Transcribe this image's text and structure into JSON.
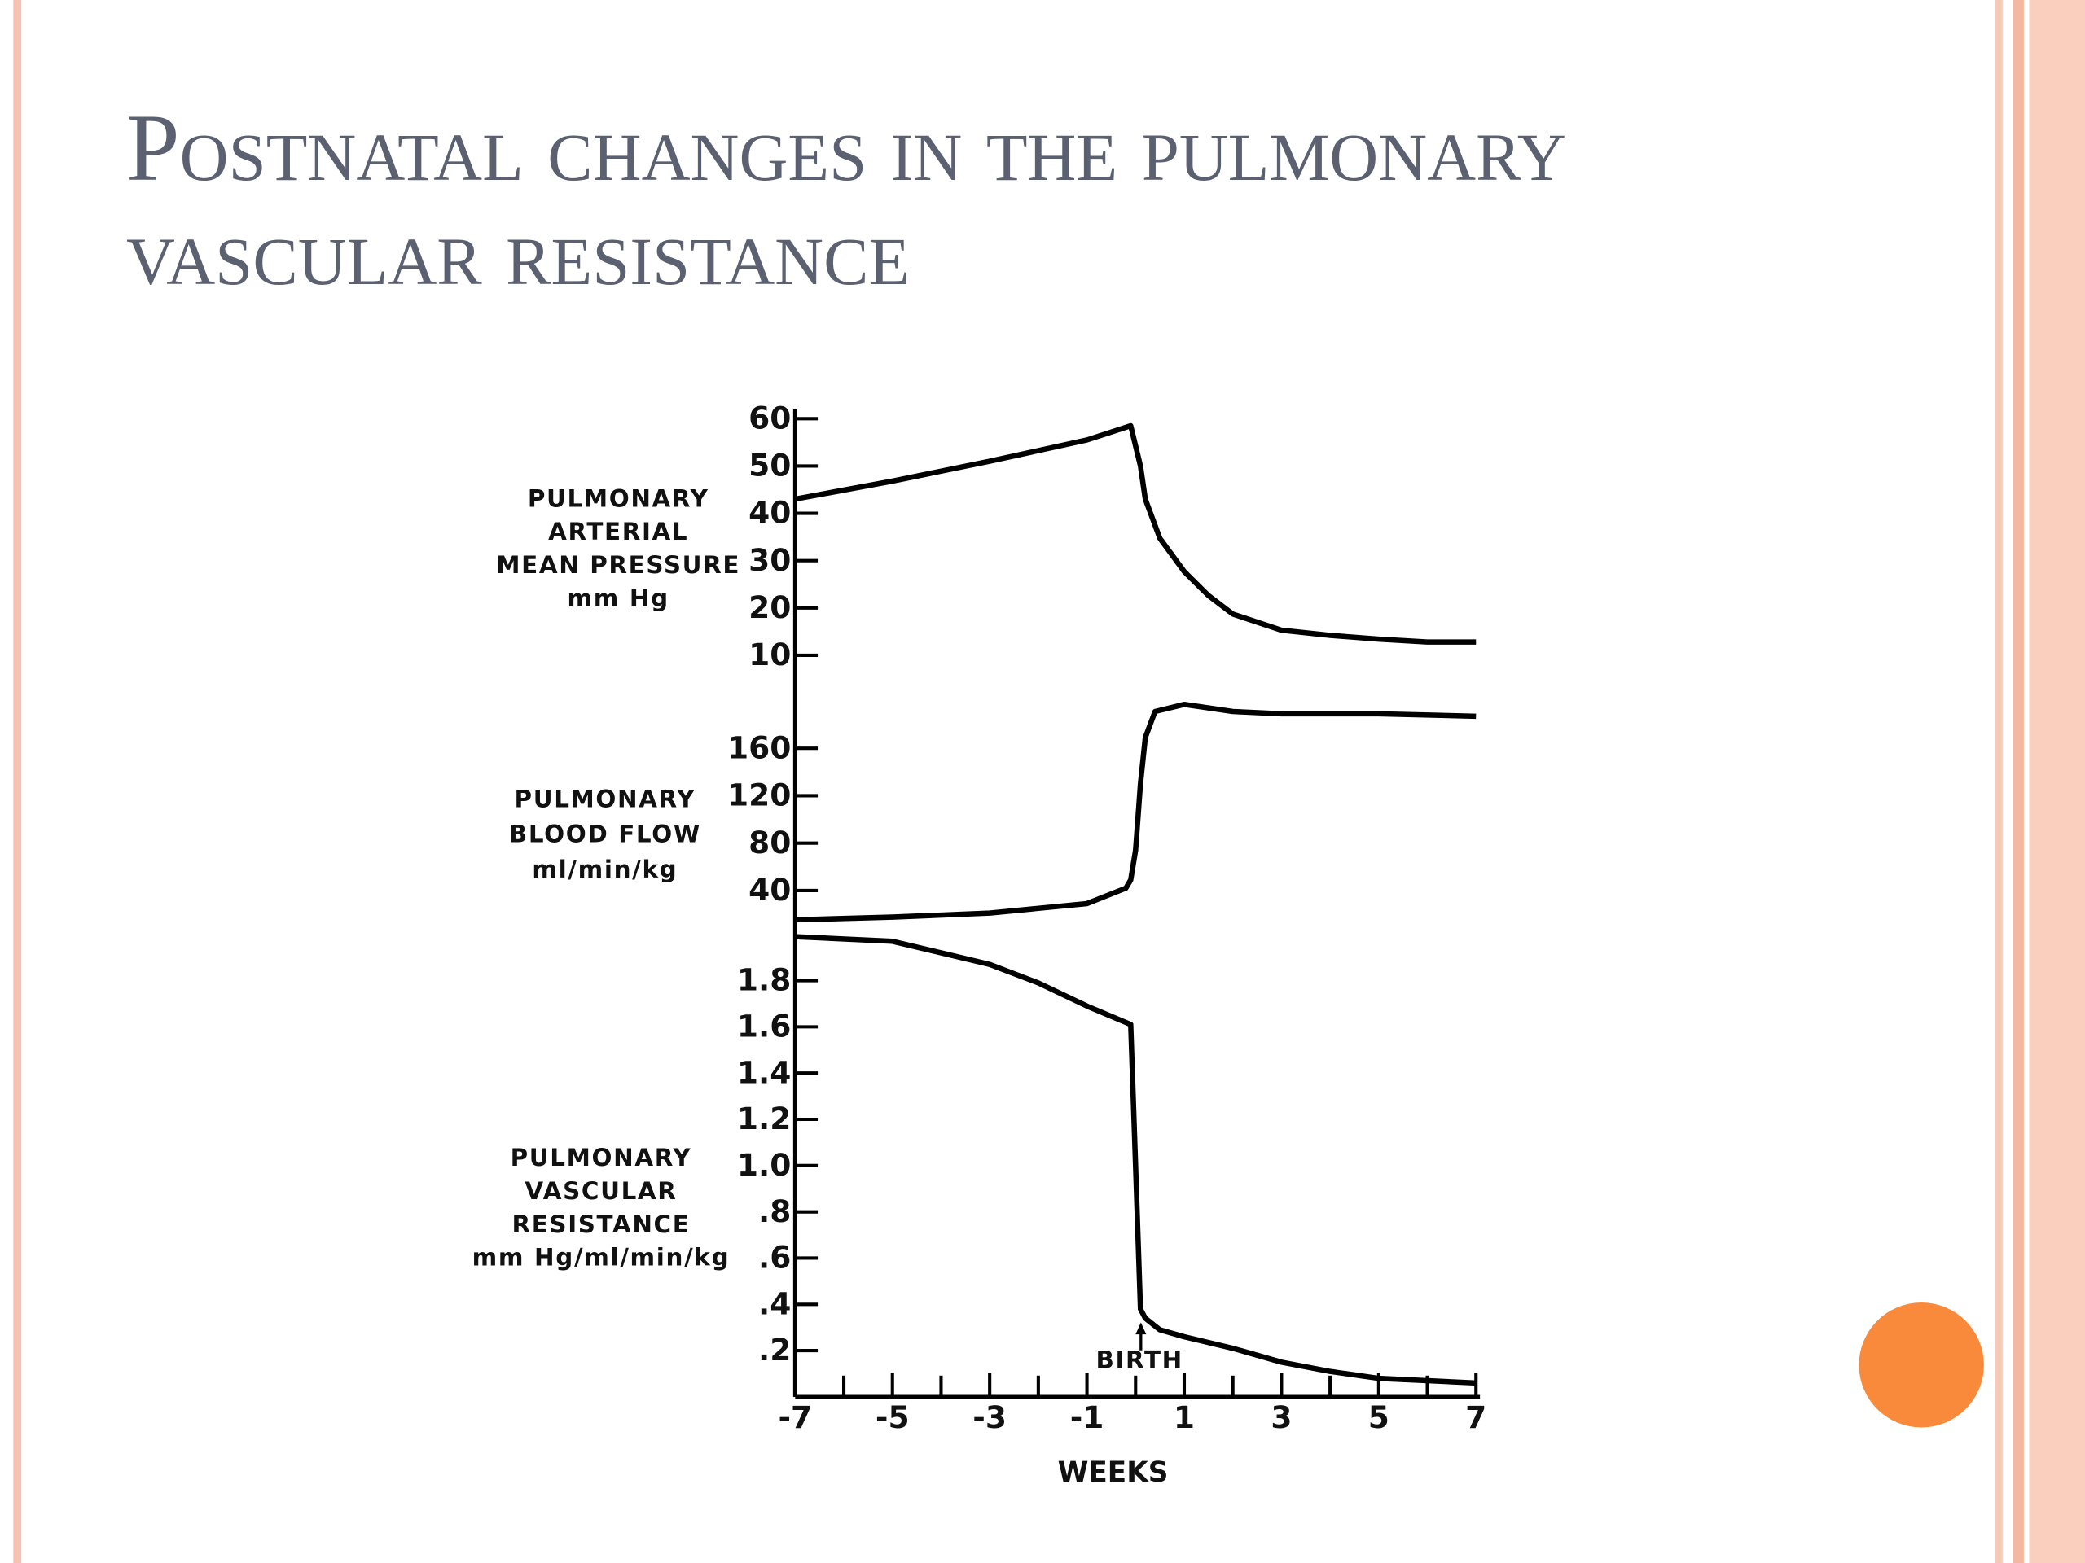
{
  "slide": {
    "title": "Postnatal changes in the pulmonary vascular resistance"
  },
  "chart_data": [
    {
      "type": "line",
      "ylabel": [
        "PULMONARY",
        "ARTERIAL",
        "MEAN PRESSURE",
        "mm Hg"
      ],
      "x": [
        -7,
        -5,
        -3,
        -1,
        -0.1,
        0.1,
        0.2,
        0.5,
        1,
        1.5,
        2,
        3,
        4,
        5,
        6,
        7
      ],
      "values": [
        43,
        46.8,
        51,
        55.5,
        58.5,
        50,
        43,
        34.7,
        27.7,
        22.6,
        18.7,
        15.3,
        14.2,
        13.4,
        12.8,
        12.8
      ],
      "color": "#000000",
      "ylim": [
        10,
        60
      ],
      "yticks": [
        60,
        50,
        40,
        30,
        20,
        10
      ]
    },
    {
      "type": "line",
      "ylabel": [
        "PULMONARY",
        "BLOOD FLOW",
        "ml/min/kg"
      ],
      "x": [
        -7,
        -5,
        -3,
        -1,
        -0.2,
        -0.1,
        0,
        0.1,
        0.2,
        0.4,
        1,
        2,
        3,
        5,
        7
      ],
      "values": [
        15.3,
        17.6,
        21,
        29,
        42,
        49,
        74,
        130,
        169,
        191,
        197,
        191,
        189,
        189,
        187
      ],
      "color": "#000000",
      "ylim": [
        10,
        200
      ],
      "yticks": [
        160,
        120,
        80,
        40
      ]
    },
    {
      "type": "line",
      "ylabel": [
        "PULMONARY",
        "VASCULAR",
        "RESISTANCE",
        "mm Hg/ml/min/kg"
      ],
      "x": [
        -7,
        -5,
        -3,
        -2,
        -1,
        -0.1,
        0,
        0.1,
        0.2,
        0.5,
        1,
        2,
        3,
        4,
        5,
        6,
        7
      ],
      "values": [
        1.99,
        1.97,
        1.87,
        1.79,
        1.69,
        1.61,
        1.0,
        0.38,
        0.34,
        0.29,
        0.26,
        0.21,
        0.15,
        0.11,
        0.08,
        0.07,
        0.06
      ],
      "color": "#000000",
      "ylim": [
        0,
        2.0
      ],
      "yticks": [
        1.8,
        1.6,
        1.4,
        1.2,
        {
          "value": 1,
          "label": "1.0"
        },
        {
          "value": 0.8,
          "label": ".8"
        },
        {
          "value": 0.6,
          "label": ".6"
        },
        {
          "value": 0.4,
          "label": ".4"
        },
        {
          "value": 0.2,
          "label": ".2"
        }
      ],
      "xlim": [
        -7,
        7
      ],
      "xticks": [
        -7,
        -5,
        -3,
        -1,
        1,
        3,
        5,
        7
      ],
      "xminorticks": [
        -6,
        -4,
        -2,
        0,
        2,
        4,
        6
      ],
      "xlabel": "WEEKS",
      "annotations": [
        {
          "text": "BIRTH",
          "x": 0
        }
      ]
    }
  ]
}
